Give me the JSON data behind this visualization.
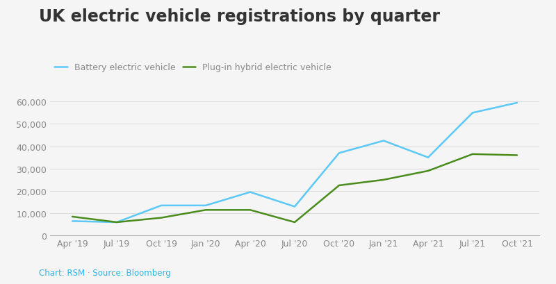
{
  "title": "UK electric vehicle registrations by quarter",
  "background_color": "#f5f5f5",
  "plot_bg_color": "#f5f5f5",
  "caption": "Chart: RSM · Source: Bloomberg",
  "caption_color": "#29b6e8",
  "x_labels": [
    "Apr '19",
    "Jul '19",
    "Oct '19",
    "Jan '20",
    "Apr '20",
    "Jul '20",
    "Oct '20",
    "Jan '21",
    "Apr '21",
    "Jul '21",
    "Oct '21"
  ],
  "bev_values": [
    6500,
    6000,
    13500,
    13500,
    19500,
    13000,
    37000,
    42500,
    35000,
    55000,
    59500
  ],
  "phev_values": [
    8500,
    6000,
    8000,
    11500,
    11500,
    6000,
    22500,
    25000,
    29000,
    36500,
    36000
  ],
  "bev_color": "#5bc8f5",
  "phev_color": "#4a8c1c",
  "bev_label": "Battery electric vehicle",
  "phev_label": "Plug-in hybrid electric vehicle",
  "ylim": [
    0,
    65000
  ],
  "yticks": [
    0,
    10000,
    20000,
    30000,
    40000,
    50000,
    60000
  ],
  "title_fontsize": 17,
  "legend_fontsize": 9,
  "tick_fontsize": 9,
  "line_width": 1.8,
  "grid_color": "#dddddd",
  "axis_color": "#aaaaaa",
  "tick_color": "#888888",
  "title_color": "#333333"
}
